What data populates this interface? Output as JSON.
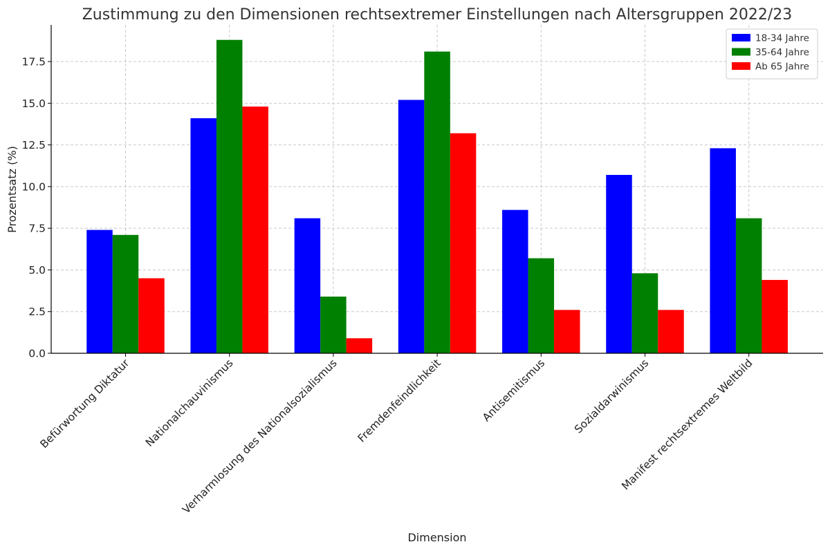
{
  "chart_data": {
    "type": "bar",
    "title": "Zustimmung zu den Dimensionen rechtsextremer Einstellungen nach Altersgruppen 2022/23",
    "xlabel": "Dimension",
    "ylabel": "Prozentsatz (%)",
    "ylim": [
      0,
      19.7
    ],
    "yticks": [
      0,
      2.5,
      5,
      7.5,
      10,
      12.5,
      15,
      17.5
    ],
    "ytick_labels": [
      "0.0",
      "2.5",
      "5.0",
      "7.5",
      "10.0",
      "12.5",
      "15.0",
      "17.5"
    ],
    "grid": true,
    "legend_position": "top-right",
    "categories": [
      "Befürwortung Diktatur",
      "Nationalchauvinismus",
      "Verharmlosung des Nationalsozialismus",
      "Fremdenfeindlichkeit",
      "Antisemitismus",
      "Sozialdarwinismus",
      "Manifest rechtsextremes Weltbild"
    ],
    "series": [
      {
        "name": "18-34 Jahre",
        "color": "#0000ff",
        "values": [
          7.4,
          14.1,
          8.1,
          15.2,
          8.6,
          10.7,
          12.3
        ]
      },
      {
        "name": "35-64 Jahre",
        "color": "#008000",
        "values": [
          7.1,
          18.8,
          3.4,
          18.1,
          5.7,
          4.8,
          8.1
        ]
      },
      {
        "name": "Ab 65 Jahre",
        "color": "#ff0000",
        "values": [
          4.5,
          14.8,
          0.9,
          13.2,
          2.6,
          2.6,
          4.4
        ]
      }
    ]
  }
}
